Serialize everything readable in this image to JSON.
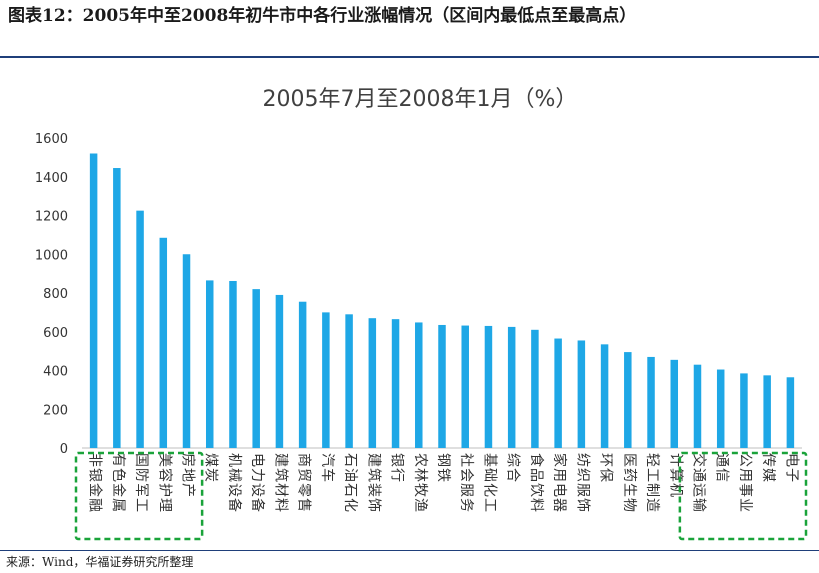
{
  "figure": {
    "title": "图表12：2005年中至2008年初牛市中各行业涨幅情况（区间内最低点至最高点）",
    "source": "来源：Wind，华福证券研究所整理"
  },
  "colors": {
    "bar": "#1ea7e6",
    "highlight": "#1aa33a",
    "axis": "#bfbfbf"
  },
  "chart_data": {
    "type": "bar",
    "title": "2005年7月至2008年1月（%）",
    "xlabel": "",
    "ylabel": "",
    "ylim": [
      0,
      1600
    ],
    "yticks": [
      0,
      200,
      400,
      600,
      800,
      1000,
      1200,
      1400,
      1600
    ],
    "grid": false,
    "categories": [
      "非银金融",
      "有色金属",
      "国防军工",
      "美容护理",
      "房地产",
      "煤炭",
      "机械设备",
      "电力设备",
      "建筑材料",
      "商贸零售",
      "汽车",
      "石油石化",
      "建筑装饰",
      "银行",
      "农林牧渔",
      "钢铁",
      "社会服务",
      "基础化工",
      "综合",
      "食品饮料",
      "家用电器",
      "纺织服饰",
      "环保",
      "医药生物",
      "轻工制造",
      "计算机",
      "交通运输",
      "通信",
      "公用事业",
      "传媒",
      "电子"
    ],
    "values": [
      1520,
      1445,
      1225,
      1085,
      1000,
      865,
      862,
      820,
      790,
      755,
      700,
      690,
      670,
      665,
      648,
      635,
      632,
      630,
      625,
      610,
      565,
      555,
      535,
      495,
      470,
      455,
      430,
      405,
      385,
      375,
      365
    ],
    "highlight_groups": [
      {
        "name": "left-group",
        "from": 0,
        "to": 4
      },
      {
        "name": "right-group",
        "from": 26,
        "to": 30
      }
    ]
  }
}
